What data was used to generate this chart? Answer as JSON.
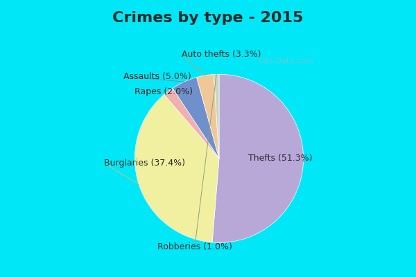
{
  "title": "Crimes by type - 2015",
  "slices": [
    {
      "label": "Thefts (51.3%)",
      "value": 51.3,
      "color": "#b8a8d8"
    },
    {
      "label": "Burglaries (37.4%)",
      "value": 37.4,
      "color": "#f0f0a0"
    },
    {
      "label": "Rapes (2.0%)",
      "value": 2.0,
      "color": "#f0b0b0"
    },
    {
      "label": "Assaults (5.0%)",
      "value": 5.0,
      "color": "#7090cc"
    },
    {
      "label": "Auto thefts (3.3%)",
      "value": 3.3,
      "color": "#f0c898"
    },
    {
      "label": "Robberies (1.0%)",
      "value": 1.0,
      "color": "#c8d8c0"
    }
  ],
  "bg_cyan": "#00e8f8",
  "bg_main": "#c0ddd0",
  "title_fontsize": 16,
  "label_fontsize": 9,
  "watermark": "City-Data.com"
}
